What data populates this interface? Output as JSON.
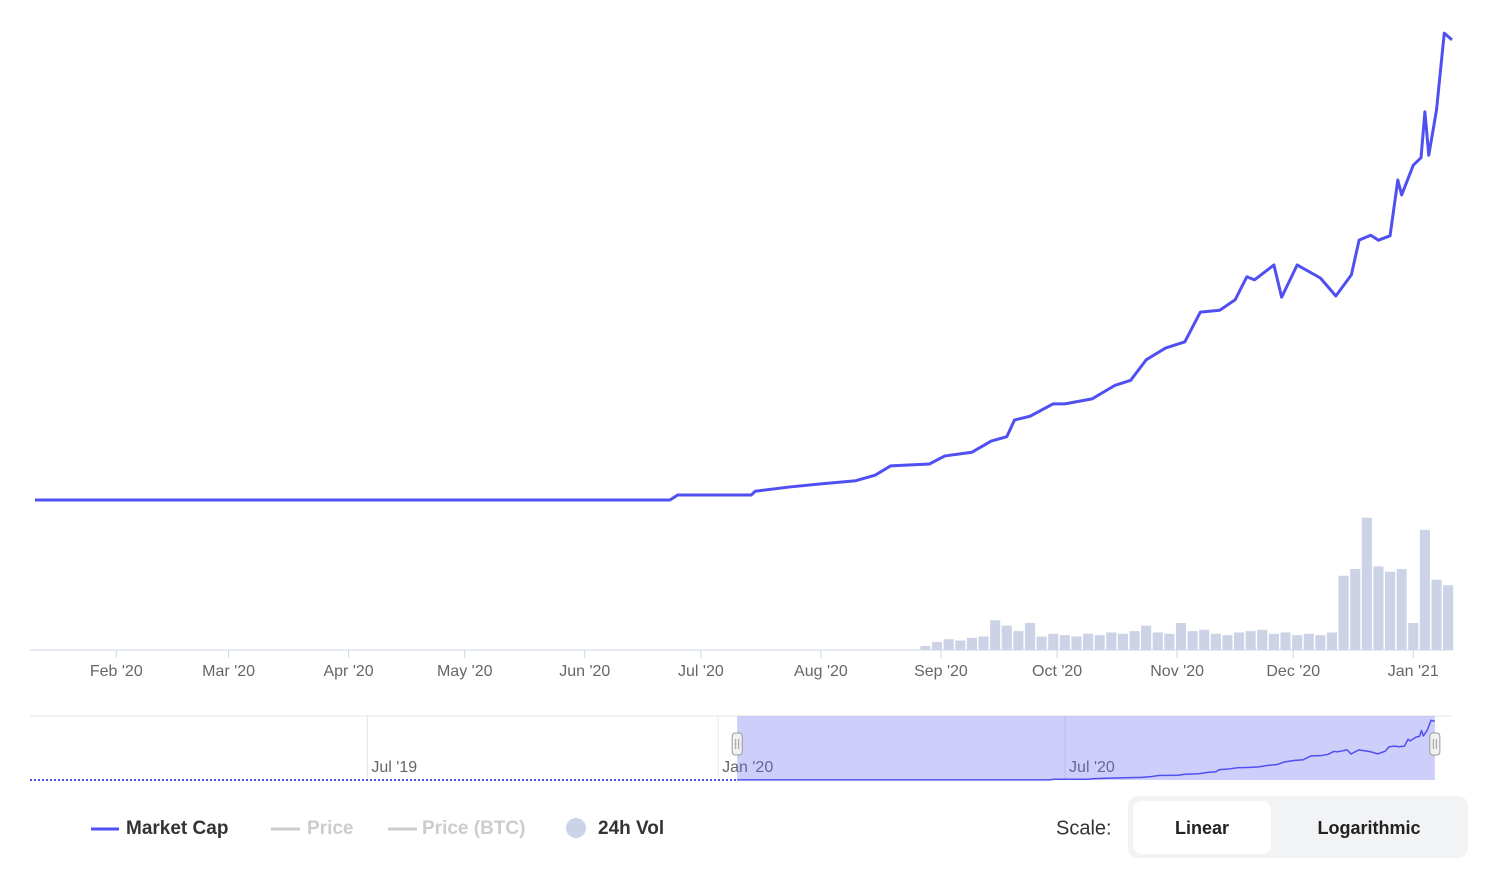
{
  "chart_data": {
    "type": "line",
    "xlim": [
      10,
      376
    ],
    "xticks": [
      {
        "value": 31,
        "label": "Feb '20"
      },
      {
        "value": 60,
        "label": "Mar '20"
      },
      {
        "value": 91,
        "label": "Apr '20"
      },
      {
        "value": 121,
        "label": "May '20"
      },
      {
        "value": 152,
        "label": "Jun '20"
      },
      {
        "value": 182,
        "label": "Jul '20"
      },
      {
        "value": 213,
        "label": "Aug '20"
      },
      {
        "value": 244,
        "label": "Sep '20"
      },
      {
        "value": 274,
        "label": "Oct '20"
      },
      {
        "value": 305,
        "label": "Nov '20"
      },
      {
        "value": 335,
        "label": "Dec '20"
      },
      {
        "value": 366,
        "label": "Jan '21"
      }
    ],
    "ylim": [
      0,
      100
    ],
    "y2lim": [
      0,
      100
    ],
    "grid": false,
    "series": [
      {
        "name": "Market Cap",
        "color": "#5050f2",
        "x": [
          10,
          174,
          176,
          195,
          196,
          205,
          213,
          222,
          227,
          231,
          241,
          245,
          252,
          257,
          261,
          263,
          267,
          273,
          276,
          283,
          289,
          293,
          297,
          302,
          307,
          311,
          316,
          320,
          323,
          325,
          330,
          332,
          336,
          342,
          346,
          350,
          352,
          355,
          357,
          360,
          362,
          363,
          366,
          368,
          369,
          370,
          372,
          374,
          376
        ],
        "values": [
          24.2,
          24.2,
          25,
          25,
          25.6,
          26.3,
          26.8,
          27.3,
          28.2,
          29.7,
          30,
          31.3,
          31.9,
          33.7,
          34.4,
          37.1,
          37.7,
          39.7,
          39.7,
          40.5,
          42.7,
          43.5,
          46.8,
          48.7,
          49.7,
          54.5,
          54.8,
          56.5,
          60.2,
          59.7,
          62.1,
          56.9,
          62.1,
          60,
          57.1,
          60.5,
          66.1,
          66.9,
          66.1,
          66.8,
          75.8,
          73.4,
          78.2,
          79.4,
          86.8,
          79.8,
          87.1,
          99.5,
          98.4
        ]
      },
      {
        "name": "24h Vol",
        "color": "#cdd3e6",
        "type": "bar",
        "axis": "y2",
        "x": [
          240,
          243,
          246,
          249,
          252,
          255,
          258,
          261,
          264,
          267,
          270,
          273,
          276,
          279,
          282,
          285,
          288,
          291,
          294,
          297,
          300,
          303,
          306,
          309,
          312,
          315,
          318,
          321,
          324,
          327,
          330,
          333,
          336,
          339,
          342,
          345,
          348,
          351,
          354,
          357,
          360,
          363,
          366,
          369,
          372,
          375
        ],
        "values": [
          3,
          6,
          8,
          7,
          9,
          10,
          22,
          18,
          14,
          20,
          10,
          12,
          11,
          10,
          12,
          11,
          13,
          12,
          14,
          18,
          13,
          12,
          20,
          14,
          15,
          12,
          11,
          13,
          14,
          15,
          12,
          13,
          11,
          12,
          11,
          13,
          55,
          60,
          98,
          62,
          58,
          60,
          20,
          89,
          52,
          48
        ]
      }
    ],
    "inactive_series": [
      {
        "name": "Price",
        "color": "#cccccc"
      },
      {
        "name": "Price (BTC)",
        "color": "#cccccc"
      }
    ],
    "navigator": {
      "xlim": [
        -361,
        385
      ],
      "ylim": [
        24,
        100
      ],
      "xticks": [
        {
          "value": -184,
          "label": "Jul '19"
        },
        {
          "value": 0,
          "label": "Jan '20"
        },
        {
          "value": 182,
          "label": "Jul '20"
        }
      ]
    },
    "scale": {
      "label": "Scale:",
      "options": [
        "Linear",
        "Logarithmic"
      ],
      "selected": 0
    }
  }
}
